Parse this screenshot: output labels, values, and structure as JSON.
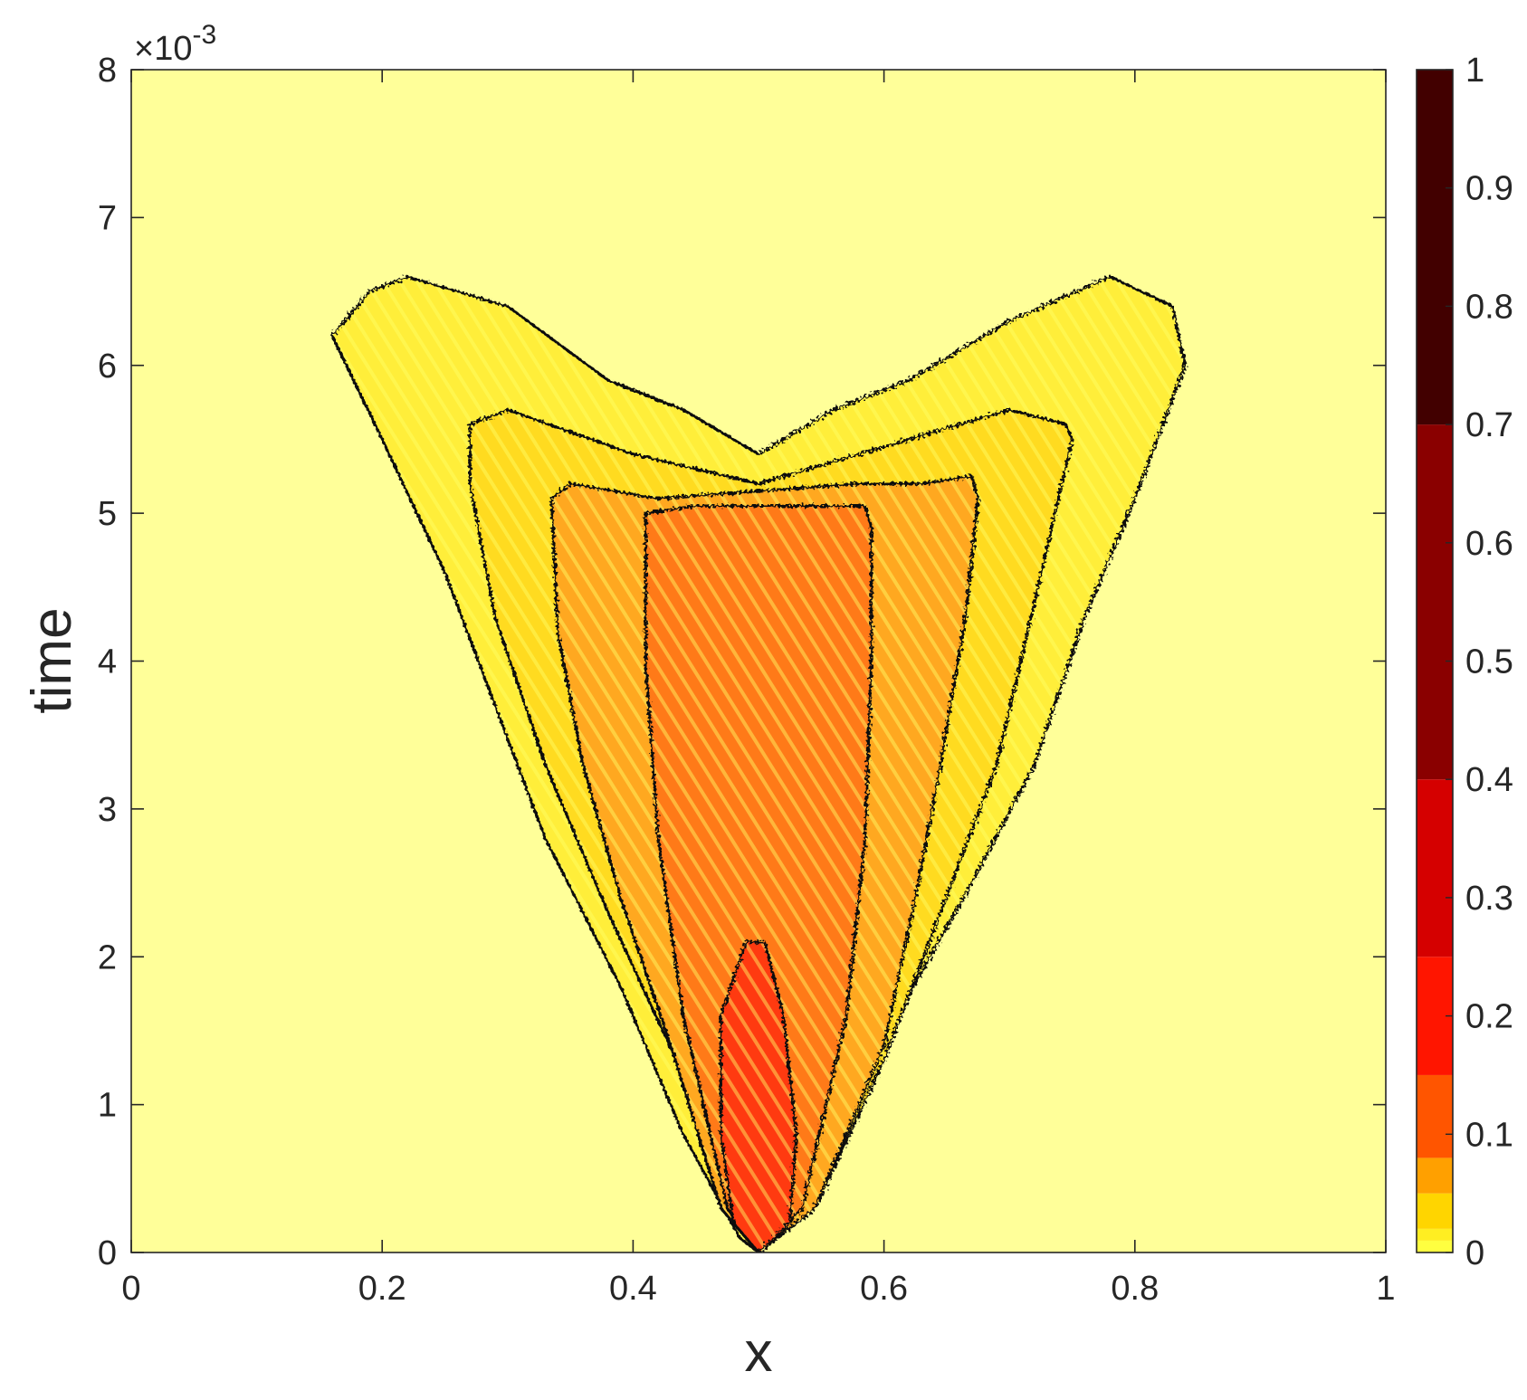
{
  "chart_data": {
    "type": "heatmap",
    "subtype": "filled contour",
    "title": "",
    "xlabel": "x",
    "ylabel": "time",
    "xlim": [
      0,
      1
    ],
    "ylim": [
      0,
      0.008
    ],
    "y_exponent_label": "×10",
    "y_exponent": "-3",
    "xticks": [
      0,
      0.2,
      0.4,
      0.6,
      0.8,
      1
    ],
    "xtick_labels": [
      "0",
      "0.2",
      "0.4",
      "0.6",
      "0.8",
      "1"
    ],
    "yticks": [
      0,
      0.001,
      0.002,
      0.003,
      0.004,
      0.005,
      0.006,
      0.007,
      0.008
    ],
    "ytick_labels": [
      "0",
      "1",
      "2",
      "3",
      "4",
      "5",
      "6",
      "7",
      "8"
    ],
    "colormap": "hot (reversed)",
    "colorbar": {
      "ticks": [
        0,
        0.1,
        0.2,
        0.3,
        0.4,
        0.5,
        0.6,
        0.7,
        0.8,
        0.9,
        1
      ],
      "tick_labels": [
        "0",
        "0.1",
        "0.2",
        "0.3",
        "0.4",
        "0.5",
        "0.6",
        "0.7",
        "0.8",
        "0.9",
        "1"
      ],
      "levels": [
        {
          "from": 0,
          "to": 0.01,
          "color": "#ffff40"
        },
        {
          "from": 0.01,
          "to": 0.02,
          "color": "#ffee22"
        },
        {
          "from": 0.02,
          "to": 0.05,
          "color": "#ffd500"
        },
        {
          "from": 0.05,
          "to": 0.08,
          "color": "#ffa000"
        },
        {
          "from": 0.08,
          "to": 0.15,
          "color": "#ff5500"
        },
        {
          "from": 0.15,
          "to": 0.25,
          "color": "#ff1500"
        },
        {
          "from": 0.25,
          "to": 0.4,
          "color": "#d50000"
        },
        {
          "from": 0.4,
          "to": 0.7,
          "color": "#8a0000"
        },
        {
          "from": 0.7,
          "to": 1,
          "color": "#420000"
        }
      ]
    },
    "background_color": "#ffff99",
    "contours": [
      {
        "level": 0.01,
        "fill": "#ffee3a",
        "points": [
          [
            0.5,
            0
          ],
          [
            0.485,
            0.0001
          ],
          [
            0.44,
            0.0008
          ],
          [
            0.39,
            0.0018
          ],
          [
            0.33,
            0.0028
          ],
          [
            0.29,
            0.0037
          ],
          [
            0.25,
            0.0046
          ],
          [
            0.2,
            0.0055
          ],
          [
            0.16,
            0.0062
          ],
          [
            0.19,
            0.0065
          ],
          [
            0.22,
            0.0066
          ],
          [
            0.3,
            0.0064
          ],
          [
            0.38,
            0.0059
          ],
          [
            0.44,
            0.0057
          ],
          [
            0.5,
            0.0054
          ],
          [
            0.56,
            0.0057
          ],
          [
            0.62,
            0.0059
          ],
          [
            0.7,
            0.0063
          ],
          [
            0.78,
            0.0066
          ],
          [
            0.83,
            0.0064
          ],
          [
            0.84,
            0.006
          ],
          [
            0.8,
            0.0051
          ],
          [
            0.76,
            0.0043
          ],
          [
            0.72,
            0.0033
          ],
          [
            0.67,
            0.0025
          ],
          [
            0.61,
            0.0016
          ],
          [
            0.56,
            0.0008
          ],
          [
            0.515,
            0.0001
          ]
        ]
      },
      {
        "level": 0.02,
        "fill": "#ffdb20",
        "points": [
          [
            0.5,
            0
          ],
          [
            0.47,
            0.0003
          ],
          [
            0.44,
            0.0012
          ],
          [
            0.38,
            0.0023
          ],
          [
            0.33,
            0.0033
          ],
          [
            0.29,
            0.0043
          ],
          [
            0.27,
            0.0052
          ],
          [
            0.27,
            0.0056
          ],
          [
            0.3,
            0.0057
          ],
          [
            0.4,
            0.0054
          ],
          [
            0.5,
            0.0052
          ],
          [
            0.58,
            0.0054
          ],
          [
            0.66,
            0.0056
          ],
          [
            0.7,
            0.0057
          ],
          [
            0.745,
            0.0056
          ],
          [
            0.75,
            0.0055
          ],
          [
            0.72,
            0.0044
          ],
          [
            0.69,
            0.0033
          ],
          [
            0.645,
            0.0023
          ],
          [
            0.6,
            0.0013
          ],
          [
            0.545,
            0.0003
          ]
        ]
      },
      {
        "level": 0.05,
        "fill": "#ffa820",
        "points": [
          [
            0.5,
            0
          ],
          [
            0.47,
            0.0003
          ],
          [
            0.43,
            0.0014
          ],
          [
            0.39,
            0.0024
          ],
          [
            0.36,
            0.0033
          ],
          [
            0.34,
            0.0042
          ],
          [
            0.335,
            0.0051
          ],
          [
            0.35,
            0.0052
          ],
          [
            0.42,
            0.0051
          ],
          [
            0.5,
            0.00515
          ],
          [
            0.58,
            0.0052
          ],
          [
            0.63,
            0.0052
          ],
          [
            0.67,
            0.00525
          ],
          [
            0.675,
            0.0051
          ],
          [
            0.665,
            0.0043
          ],
          [
            0.645,
            0.0033
          ],
          [
            0.625,
            0.0024
          ],
          [
            0.6,
            0.0014
          ],
          [
            0.545,
            0.0003
          ]
        ]
      },
      {
        "level": 0.08,
        "fill": "#ff7a18",
        "points": [
          [
            0.5,
            0
          ],
          [
            0.475,
            0.0003
          ],
          [
            0.44,
            0.0016
          ],
          [
            0.42,
            0.0028
          ],
          [
            0.41,
            0.004
          ],
          [
            0.41,
            0.005
          ],
          [
            0.45,
            0.00505
          ],
          [
            0.5,
            0.00505
          ],
          [
            0.55,
            0.00505
          ],
          [
            0.585,
            0.00505
          ],
          [
            0.59,
            0.0049
          ],
          [
            0.59,
            0.004
          ],
          [
            0.585,
            0.0028
          ],
          [
            0.57,
            0.0016
          ],
          [
            0.535,
            0.0003
          ]
        ]
      },
      {
        "level": 0.15,
        "fill": "#ff3a10",
        "points": [
          [
            0.5,
            0
          ],
          [
            0.48,
            0.0002
          ],
          [
            0.47,
            0.0008
          ],
          [
            0.47,
            0.0016
          ],
          [
            0.49,
            0.0021
          ],
          [
            0.505,
            0.0021
          ],
          [
            0.52,
            0.0016
          ],
          [
            0.53,
            0.0008
          ],
          [
            0.525,
            0.0002
          ]
        ]
      }
    ]
  }
}
